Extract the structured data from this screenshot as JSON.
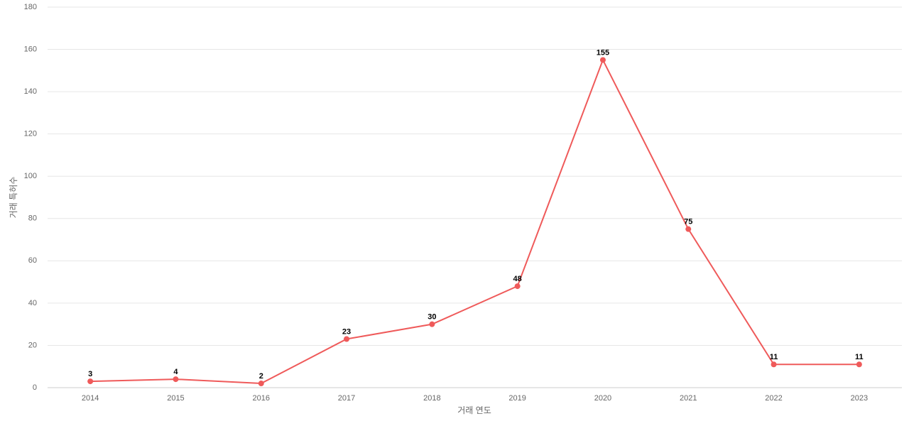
{
  "chart_data": {
    "type": "line",
    "x_label": "거래 연도",
    "y_label": "거래 특허수",
    "categories": [
      "2014",
      "2015",
      "2016",
      "2017",
      "2018",
      "2019",
      "2020",
      "2021",
      "2022",
      "2023"
    ],
    "values": [
      3,
      4,
      2,
      23,
      30,
      48,
      155,
      75,
      11,
      11
    ],
    "color": "#ef5a5a",
    "ylim": [
      0,
      180
    ],
    "yticks": [
      0,
      20,
      40,
      60,
      80,
      100,
      120,
      140,
      160,
      180
    ],
    "grid": true
  }
}
